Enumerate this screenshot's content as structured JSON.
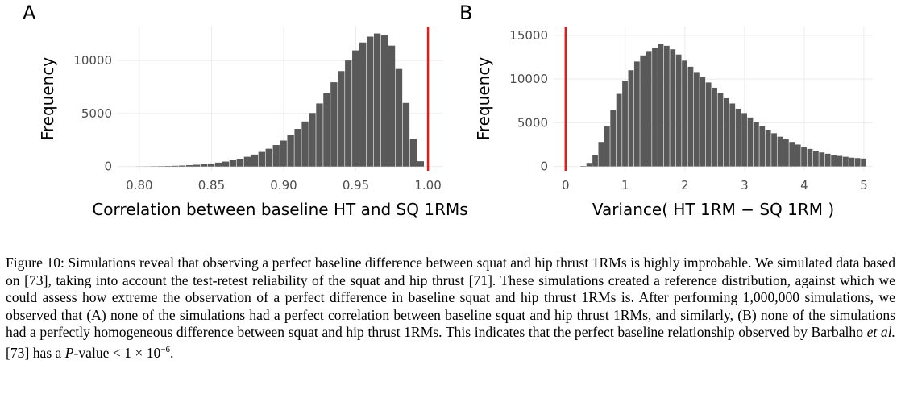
{
  "chart_data": [
    {
      "panel_label": "A",
      "type": "bar",
      "xlabel": "Correlation between baseline HT and SQ 1RMs",
      "ylabel": "Frequency",
      "xlim": [
        0.785,
        1.01
      ],
      "ylim": [
        -400,
        13200
      ],
      "xticks": [
        0.8,
        0.85,
        0.9,
        0.95,
        1.0
      ],
      "xtick_labels": [
        "0.80",
        "0.85",
        "0.90",
        "0.95",
        "1.00"
      ],
      "yticks": [
        0,
        5000,
        10000
      ],
      "ytick_labels": [
        "0",
        "5000",
        "10000"
      ],
      "grid": true,
      "reference_line": {
        "x": 1.0,
        "color": "#e31a1c"
      },
      "bar_color": "#595959",
      "x": [
        0.8,
        0.805,
        0.81,
        0.815,
        0.82,
        0.825,
        0.83,
        0.835,
        0.84,
        0.845,
        0.85,
        0.855,
        0.86,
        0.865,
        0.87,
        0.875,
        0.88,
        0.885,
        0.89,
        0.895,
        0.9,
        0.905,
        0.91,
        0.915,
        0.92,
        0.925,
        0.93,
        0.935,
        0.94,
        0.945,
        0.95,
        0.955,
        0.96,
        0.965,
        0.97,
        0.975,
        0.98,
        0.985,
        0.99,
        0.995
      ],
      "values": [
        10,
        15,
        25,
        35,
        50,
        70,
        95,
        130,
        170,
        220,
        290,
        370,
        470,
        590,
        740,
        920,
        1130,
        1380,
        1680,
        2030,
        2450,
        2950,
        3550,
        4250,
        5050,
        5950,
        6900,
        7950,
        9000,
        10000,
        10950,
        11700,
        12250,
        12550,
        12400,
        11400,
        9200,
        6000,
        2600,
        500
      ]
    },
    {
      "panel_label": "B",
      "type": "bar",
      "xlabel": "Variance( HT 1RM − SQ 1RM )",
      "ylabel": "Frequency",
      "xlim": [
        -0.2,
        5.15
      ],
      "ylim": [
        -500,
        16000
      ],
      "xticks": [
        0,
        1,
        2,
        3,
        4,
        5
      ],
      "xtick_labels": [
        "0",
        "1",
        "2",
        "3",
        "4",
        "5"
      ],
      "yticks": [
        0,
        5000,
        10000,
        15000
      ],
      "ytick_labels": [
        "0",
        "5000",
        "10000",
        "15000"
      ],
      "grid": true,
      "reference_line": {
        "x": 0,
        "color": "#e31a1c"
      },
      "bar_color": "#595959",
      "x": [
        0.3,
        0.4,
        0.5,
        0.6,
        0.7,
        0.8,
        0.9,
        1.0,
        1.1,
        1.2,
        1.3,
        1.4,
        1.5,
        1.6,
        1.7,
        1.8,
        1.9,
        2.0,
        2.1,
        2.2,
        2.3,
        2.4,
        2.5,
        2.6,
        2.7,
        2.8,
        2.9,
        3.0,
        3.1,
        3.2,
        3.3,
        3.4,
        3.5,
        3.6,
        3.7,
        3.8,
        3.9,
        4.0,
        4.1,
        4.2,
        4.3,
        4.4,
        4.5,
        4.6,
        4.7,
        4.8,
        4.9,
        5.0
      ],
      "values": [
        50,
        400,
        1300,
        2800,
        4600,
        6500,
        8300,
        9800,
        11000,
        12000,
        12700,
        13200,
        13600,
        14000,
        13800,
        13400,
        12800,
        12100,
        11400,
        10800,
        10200,
        9600,
        9000,
        8400,
        7800,
        7200,
        6600,
        6100,
        5600,
        5100,
        4600,
        4200,
        3800,
        3400,
        3100,
        2800,
        2500,
        2200,
        2000,
        1800,
        1600,
        1450,
        1300,
        1200,
        1100,
        1000,
        950,
        900
      ]
    }
  ],
  "caption": {
    "prefix": "Figure 10: Simulations reveal that observing a perfect baseline difference between squat and hip thrust 1RMs is highly improbable. We simulated data based on [73], taking into account the test-retest reliability of the squat and hip thrust [71]. These simulations created a reference distribution, against which we could assess how extreme the observation of a perfect difference in baseline squat and hip thrust 1RMs is. After performing 1,000,000 simulations, we observed that (A) none of the simulations had a perfect correlation between baseline squat and hip thrust 1RMs, and similarly, (B) none of the simulations had a perfectly homogeneous difference between squat and hip thrust 1RMs. This indicates that the perfect baseline relationship observed by Barbalho ",
    "etal": "et al.",
    "mid": " [73] has a ",
    "P": "P",
    "suffix": "-value < 1 × 10",
    "exponent": "−6",
    "end": "."
  }
}
